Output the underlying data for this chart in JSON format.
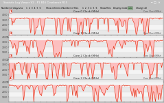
{
  "title_bar": "Statistic Log Viewer V2 - P1 B16 Cinebench R15",
  "toolbar_text": "Number of diagrams  1  2  3  4  5  6    Show reference    Number of files  1  2  3  4  5  6    Show Files    Display mode: auto    Change all",
  "panels": [
    {
      "label": "Core 0 Clock (MHz)",
      "id": "1",
      "id_color": "#cc2200"
    },
    {
      "label": "Core 1 Clock (MHz)",
      "id": "2",
      "id_color": "#cc2200"
    },
    {
      "label": "Core 2 Clock (MHz)",
      "id": "3",
      "id_color": "#cc2200"
    },
    {
      "label": "Core 3 Clock (MHz)",
      "id": "4",
      "id_color": "#cc2200"
    }
  ],
  "bg_color": "#c0c0c0",
  "toolbar_bg": "#d4d0c8",
  "titlebar_bg": "#4a6a9c",
  "plot_bg": "#f0f0f0",
  "grid_color": "#d8d8d8",
  "line_color": "#dd2200",
  "fill_color": "#ffbbbb",
  "ymin": 0,
  "ymax": 4400,
  "ytick_values": [
    1000,
    2000,
    3000,
    4000
  ],
  "ytick_labels": [
    "1000",
    "2000",
    "3000",
    "4000"
  ],
  "baseline": 3300,
  "n_points": 200,
  "seed": 7,
  "spike_color": "#ff0000",
  "border_color": "#999999"
}
